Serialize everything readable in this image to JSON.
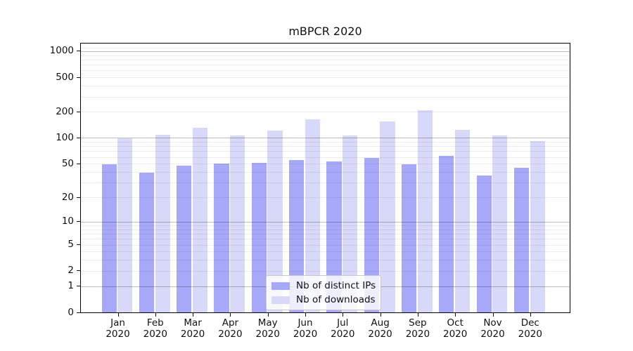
{
  "chart_data": {
    "type": "bar",
    "title": "mBPCR 2020",
    "x_tick_year": "2020",
    "categories": [
      "Jan",
      "Feb",
      "Mar",
      "Apr",
      "May",
      "Jun",
      "Jul",
      "Aug",
      "Sep",
      "Oct",
      "Nov",
      "Dec"
    ],
    "series": [
      {
        "name": "Nb of distinct IPs",
        "color": "#a8a8f8",
        "values": [
          50,
          40,
          48,
          51,
          52,
          56,
          54,
          59,
          50,
          62,
          37,
          45
        ]
      },
      {
        "name": "Nb of downloads",
        "color": "#d8d8f8",
        "values": [
          100,
          110,
          132,
          108,
          123,
          165,
          108,
          156,
          211,
          126,
          107,
          93
        ]
      }
    ],
    "yscale": "log1p",
    "ylim": [
      0,
      1230
    ],
    "y_tick_values": [
      0,
      1,
      2,
      5,
      10,
      20,
      50,
      100,
      200,
      500,
      1000
    ],
    "y_tick_labels": [
      "0",
      "1",
      "2",
      "5",
      "10",
      "20",
      "50",
      "100",
      "200",
      "500",
      "1000"
    ],
    "major_grid_values": [
      1,
      10,
      100,
      1000
    ],
    "minor_grid_values": [
      2,
      3,
      4,
      5,
      6,
      7,
      8,
      9,
      20,
      30,
      40,
      50,
      60,
      70,
      80,
      90,
      200,
      300,
      400,
      500,
      600,
      700,
      800,
      900,
      1100
    ],
    "grid": true,
    "legend_position": "lower center"
  },
  "colors": {
    "background": "#ffffff",
    "spine": "#000000",
    "text": "#111111",
    "major_grid": "#bdbdbd",
    "minor_grid": "#ededed",
    "series_ips": "#a8a8f8",
    "series_downloads": "#d8d8f8"
  }
}
